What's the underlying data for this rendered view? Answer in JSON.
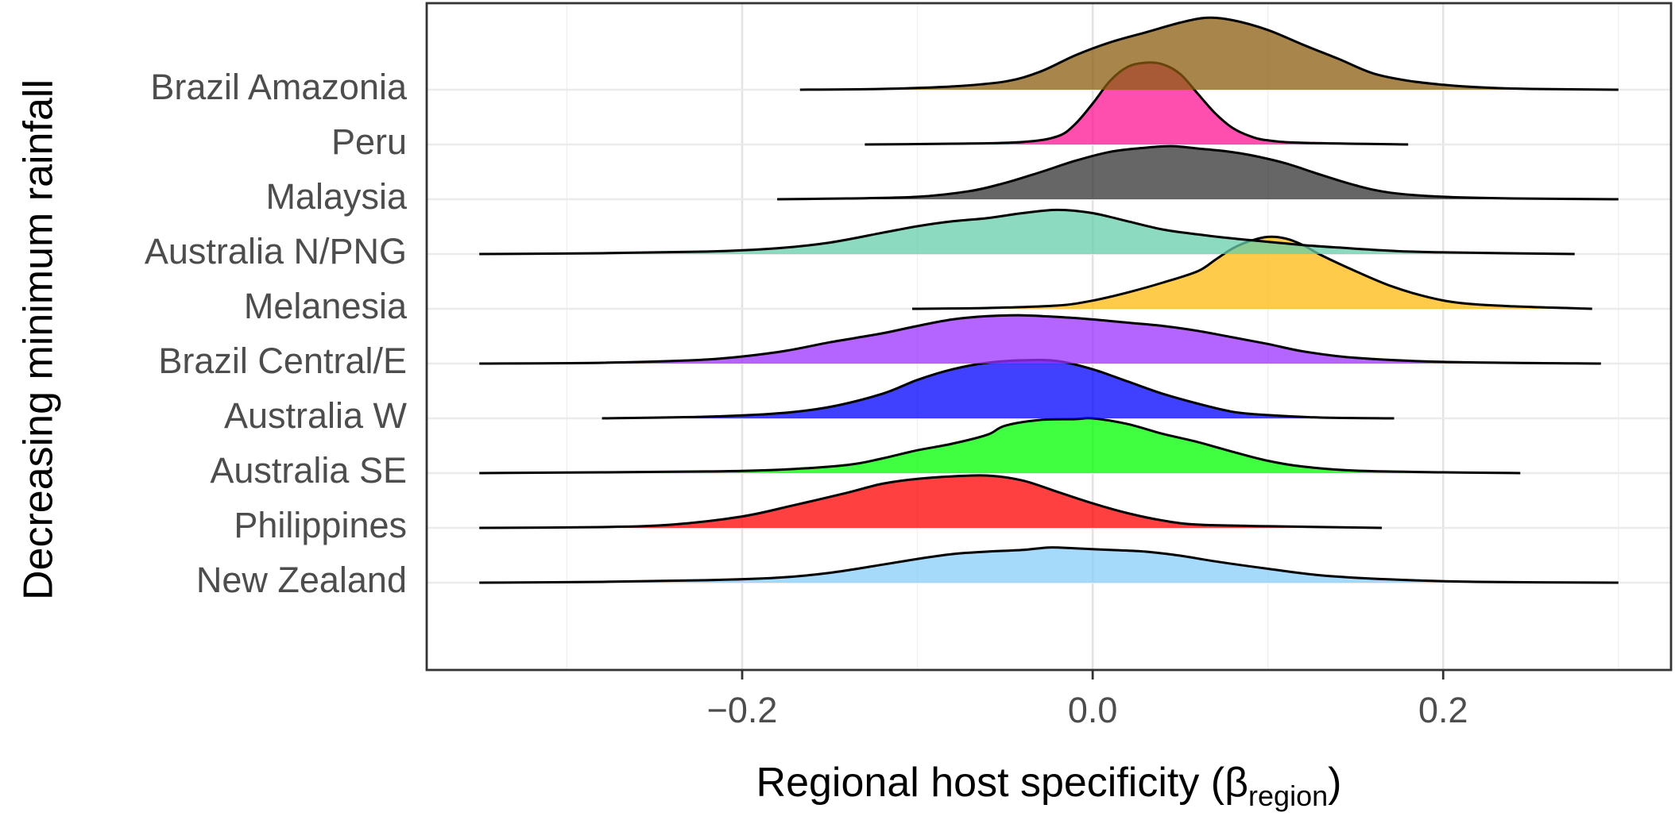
{
  "chart_data": {
    "type": "area",
    "subtype": "ridgeline-density",
    "title": "",
    "xlabel_main": "Regional host specificity (β",
    "xlabel_sub": "region",
    "xlabel_close": ")",
    "ylabel": "Decreasing minimum rainfall",
    "xlim": [
      -0.38,
      0.33
    ],
    "xticks": [
      -0.2,
      0.0,
      0.2
    ],
    "xtick_labels": [
      "−0.2",
      "0.0",
      "0.2"
    ],
    "grid": true,
    "legend": "none",
    "opacity": 0.75,
    "series": [
      {
        "name": "Brazil Amazonia",
        "color": "#8B5E0F",
        "range": [
          -0.167,
          0.3
        ],
        "density": [
          [
            -0.167,
            0
          ],
          [
            -0.12,
            0.01
          ],
          [
            -0.08,
            0.04
          ],
          [
            -0.05,
            0.1
          ],
          [
            -0.03,
            0.22
          ],
          [
            -0.01,
            0.42
          ],
          [
            0.01,
            0.58
          ],
          [
            0.03,
            0.7
          ],
          [
            0.05,
            0.82
          ],
          [
            0.065,
            0.88
          ],
          [
            0.08,
            0.85
          ],
          [
            0.1,
            0.73
          ],
          [
            0.12,
            0.55
          ],
          [
            0.14,
            0.38
          ],
          [
            0.16,
            0.2
          ],
          [
            0.18,
            0.11
          ],
          [
            0.2,
            0.06
          ],
          [
            0.22,
            0.03
          ],
          [
            0.25,
            0.01
          ],
          [
            0.3,
            0
          ]
        ]
      },
      {
        "name": "Peru",
        "color": "#FF1493",
        "range": [
          -0.13,
          0.18
        ],
        "density": [
          [
            -0.13,
            0
          ],
          [
            -0.08,
            0.01
          ],
          [
            -0.04,
            0.03
          ],
          [
            -0.02,
            0.1
          ],
          [
            -0.01,
            0.25
          ],
          [
            0.0,
            0.5
          ],
          [
            0.01,
            0.78
          ],
          [
            0.02,
            0.95
          ],
          [
            0.03,
            1.0
          ],
          [
            0.04,
            0.98
          ],
          [
            0.05,
            0.86
          ],
          [
            0.06,
            0.62
          ],
          [
            0.07,
            0.38
          ],
          [
            0.08,
            0.2
          ],
          [
            0.09,
            0.1
          ],
          [
            0.1,
            0.05
          ],
          [
            0.12,
            0.02
          ],
          [
            0.18,
            0
          ]
        ]
      },
      {
        "name": "Malaysia",
        "color": "#333333",
        "range": [
          -0.18,
          0.3
        ],
        "density": [
          [
            -0.18,
            0
          ],
          [
            -0.14,
            0.01
          ],
          [
            -0.1,
            0.03
          ],
          [
            -0.07,
            0.1
          ],
          [
            -0.05,
            0.2
          ],
          [
            -0.03,
            0.33
          ],
          [
            -0.01,
            0.47
          ],
          [
            0.01,
            0.58
          ],
          [
            0.03,
            0.63
          ],
          [
            0.045,
            0.65
          ],
          [
            0.06,
            0.62
          ],
          [
            0.075,
            0.59
          ],
          [
            0.09,
            0.54
          ],
          [
            0.11,
            0.44
          ],
          [
            0.13,
            0.3
          ],
          [
            0.15,
            0.17
          ],
          [
            0.17,
            0.08
          ],
          [
            0.2,
            0.03
          ],
          [
            0.24,
            0.01
          ],
          [
            0.3,
            0
          ]
        ]
      },
      {
        "name": "Australia N/PNG",
        "color": "#66CDAA",
        "range": [
          -0.35,
          0.275
        ],
        "density": [
          [
            -0.35,
            0
          ],
          [
            -0.28,
            0.01
          ],
          [
            -0.22,
            0.03
          ],
          [
            -0.18,
            0.07
          ],
          [
            -0.15,
            0.14
          ],
          [
            -0.12,
            0.26
          ],
          [
            -0.1,
            0.34
          ],
          [
            -0.08,
            0.4
          ],
          [
            -0.06,
            0.44
          ],
          [
            -0.04,
            0.5
          ],
          [
            -0.02,
            0.54
          ],
          [
            0.0,
            0.5
          ],
          [
            0.02,
            0.4
          ],
          [
            0.04,
            0.3
          ],
          [
            0.06,
            0.24
          ],
          [
            0.08,
            0.19
          ],
          [
            0.1,
            0.15
          ],
          [
            0.12,
            0.11
          ],
          [
            0.14,
            0.08
          ],
          [
            0.17,
            0.04
          ],
          [
            0.2,
            0.02
          ],
          [
            0.275,
            0
          ]
        ]
      },
      {
        "name": "Melanesia",
        "color": "#FFB90F",
        "range": [
          -0.103,
          0.285
        ],
        "density": [
          [
            -0.103,
            0
          ],
          [
            -0.06,
            0.01
          ],
          [
            -0.02,
            0.04
          ],
          [
            0.0,
            0.1
          ],
          [
            0.02,
            0.2
          ],
          [
            0.04,
            0.32
          ],
          [
            0.06,
            0.46
          ],
          [
            0.07,
            0.6
          ],
          [
            0.08,
            0.74
          ],
          [
            0.09,
            0.83
          ],
          [
            0.1,
            0.88
          ],
          [
            0.11,
            0.86
          ],
          [
            0.12,
            0.78
          ],
          [
            0.13,
            0.66
          ],
          [
            0.15,
            0.46
          ],
          [
            0.17,
            0.28
          ],
          [
            0.19,
            0.15
          ],
          [
            0.21,
            0.07
          ],
          [
            0.24,
            0.03
          ],
          [
            0.285,
            0
          ]
        ]
      },
      {
        "name": "Brazil Central/E",
        "color": "#9B30FF",
        "range": [
          -0.35,
          0.29
        ],
        "density": [
          [
            -0.35,
            0
          ],
          [
            -0.28,
            0.01
          ],
          [
            -0.22,
            0.05
          ],
          [
            -0.18,
            0.14
          ],
          [
            -0.15,
            0.26
          ],
          [
            -0.12,
            0.37
          ],
          [
            -0.1,
            0.46
          ],
          [
            -0.08,
            0.54
          ],
          [
            -0.06,
            0.58
          ],
          [
            -0.04,
            0.59
          ],
          [
            -0.02,
            0.57
          ],
          [
            0.0,
            0.54
          ],
          [
            0.02,
            0.5
          ],
          [
            0.04,
            0.46
          ],
          [
            0.06,
            0.4
          ],
          [
            0.08,
            0.32
          ],
          [
            0.1,
            0.24
          ],
          [
            0.12,
            0.15
          ],
          [
            0.15,
            0.07
          ],
          [
            0.2,
            0.02
          ],
          [
            0.29,
            0
          ]
        ]
      },
      {
        "name": "Australia W",
        "color": "#0000FF",
        "range": [
          -0.28,
          0.172
        ],
        "density": [
          [
            -0.28,
            0
          ],
          [
            -0.22,
            0.02
          ],
          [
            -0.18,
            0.06
          ],
          [
            -0.15,
            0.14
          ],
          [
            -0.12,
            0.3
          ],
          [
            -0.1,
            0.47
          ],
          [
            -0.08,
            0.6
          ],
          [
            -0.06,
            0.68
          ],
          [
            -0.04,
            0.71
          ],
          [
            -0.02,
            0.7
          ],
          [
            0.0,
            0.6
          ],
          [
            0.02,
            0.45
          ],
          [
            0.04,
            0.3
          ],
          [
            0.06,
            0.18
          ],
          [
            0.08,
            0.08
          ],
          [
            0.1,
            0.04
          ],
          [
            0.13,
            0.01
          ],
          [
            0.172,
            0
          ]
        ]
      },
      {
        "name": "Australia SE",
        "color": "#00FF00",
        "range": [
          -0.35,
          0.244
        ],
        "density": [
          [
            -0.35,
            0
          ],
          [
            -0.28,
            0.01
          ],
          [
            -0.22,
            0.02
          ],
          [
            -0.18,
            0.04
          ],
          [
            -0.14,
            0.1
          ],
          [
            -0.12,
            0.18
          ],
          [
            -0.1,
            0.28
          ],
          [
            -0.08,
            0.36
          ],
          [
            -0.06,
            0.47
          ],
          [
            -0.05,
            0.58
          ],
          [
            -0.03,
            0.65
          ],
          [
            -0.01,
            0.66
          ],
          [
            0.0,
            0.67
          ],
          [
            0.02,
            0.6
          ],
          [
            0.04,
            0.48
          ],
          [
            0.06,
            0.38
          ],
          [
            0.08,
            0.26
          ],
          [
            0.1,
            0.15
          ],
          [
            0.12,
            0.08
          ],
          [
            0.15,
            0.03
          ],
          [
            0.2,
            0.01
          ],
          [
            0.244,
            0
          ]
        ]
      },
      {
        "name": "Philippines",
        "color": "#FF0000",
        "range": [
          -0.35,
          0.165
        ],
        "density": [
          [
            -0.35,
            0
          ],
          [
            -0.28,
            0.01
          ],
          [
            -0.24,
            0.04
          ],
          [
            -0.2,
            0.14
          ],
          [
            -0.17,
            0.28
          ],
          [
            -0.14,
            0.43
          ],
          [
            -0.12,
            0.54
          ],
          [
            -0.1,
            0.6
          ],
          [
            -0.08,
            0.63
          ],
          [
            -0.06,
            0.64
          ],
          [
            -0.04,
            0.58
          ],
          [
            -0.02,
            0.44
          ],
          [
            0.0,
            0.3
          ],
          [
            0.02,
            0.18
          ],
          [
            0.04,
            0.09
          ],
          [
            0.06,
            0.04
          ],
          [
            0.1,
            0.02
          ],
          [
            0.165,
            0
          ]
        ]
      },
      {
        "name": "New Zealand",
        "color": "#87CEFA",
        "range": [
          -0.35,
          0.3
        ],
        "density": [
          [
            -0.35,
            0
          ],
          [
            -0.28,
            0.01
          ],
          [
            -0.22,
            0.03
          ],
          [
            -0.18,
            0.06
          ],
          [
            -0.15,
            0.12
          ],
          [
            -0.12,
            0.22
          ],
          [
            -0.1,
            0.29
          ],
          [
            -0.08,
            0.35
          ],
          [
            -0.06,
            0.38
          ],
          [
            -0.04,
            0.4
          ],
          [
            -0.025,
            0.43
          ],
          [
            -0.01,
            0.42
          ],
          [
            0.01,
            0.4
          ],
          [
            0.03,
            0.38
          ],
          [
            0.05,
            0.33
          ],
          [
            0.07,
            0.26
          ],
          [
            0.1,
            0.17
          ],
          [
            0.13,
            0.09
          ],
          [
            0.17,
            0.04
          ],
          [
            0.22,
            0.01
          ],
          [
            0.3,
            0
          ]
        ]
      }
    ]
  }
}
